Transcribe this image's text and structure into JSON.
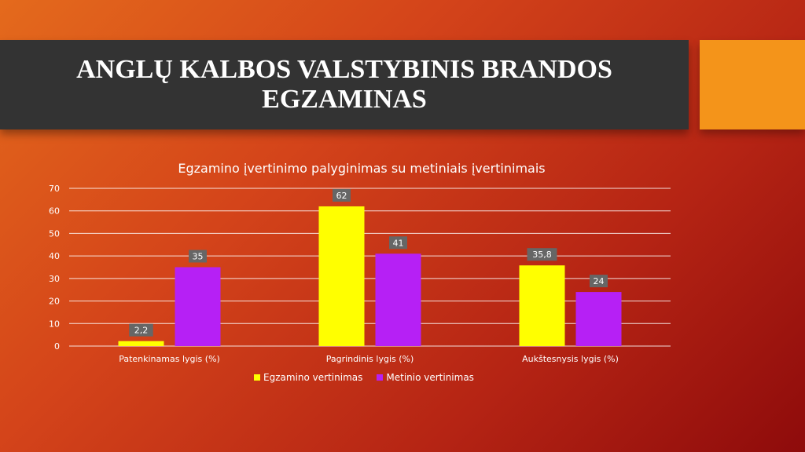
{
  "slide": {
    "title": "ANGLŲ KALBOS VALSTYBINIS BRANDOS EGZAMINAS"
  },
  "colors": {
    "title_bar": "#333333",
    "accent": "#f4941a",
    "exam": "#ffff00",
    "annual": "#b620f5",
    "label_bg": "#666666"
  },
  "chart_data": {
    "type": "bar",
    "title": "Egzamino įvertinimo palyginimas su metiniais įvertinimais",
    "categories": [
      "Patenkinamas lygis (%)",
      "Pagrindinis lygis  (%)",
      "Aukštesnysis lygis  (%)"
    ],
    "series": [
      {
        "name": "Egzamino vertinimas",
        "values": [
          2.2,
          62,
          35.8
        ],
        "labels": [
          "2,2",
          "62",
          "35,8"
        ],
        "color": "#ffff00"
      },
      {
        "name": "Metinio vertinimas",
        "values": [
          35,
          41,
          24
        ],
        "labels": [
          "35",
          "41",
          "24"
        ],
        "color": "#b620f5"
      }
    ],
    "yticks": [
      "0",
      "10",
      "20",
      "30",
      "40",
      "50",
      "60",
      "70"
    ],
    "ylim": [
      0,
      70
    ],
    "grid": true,
    "legend_position": "bottom"
  }
}
